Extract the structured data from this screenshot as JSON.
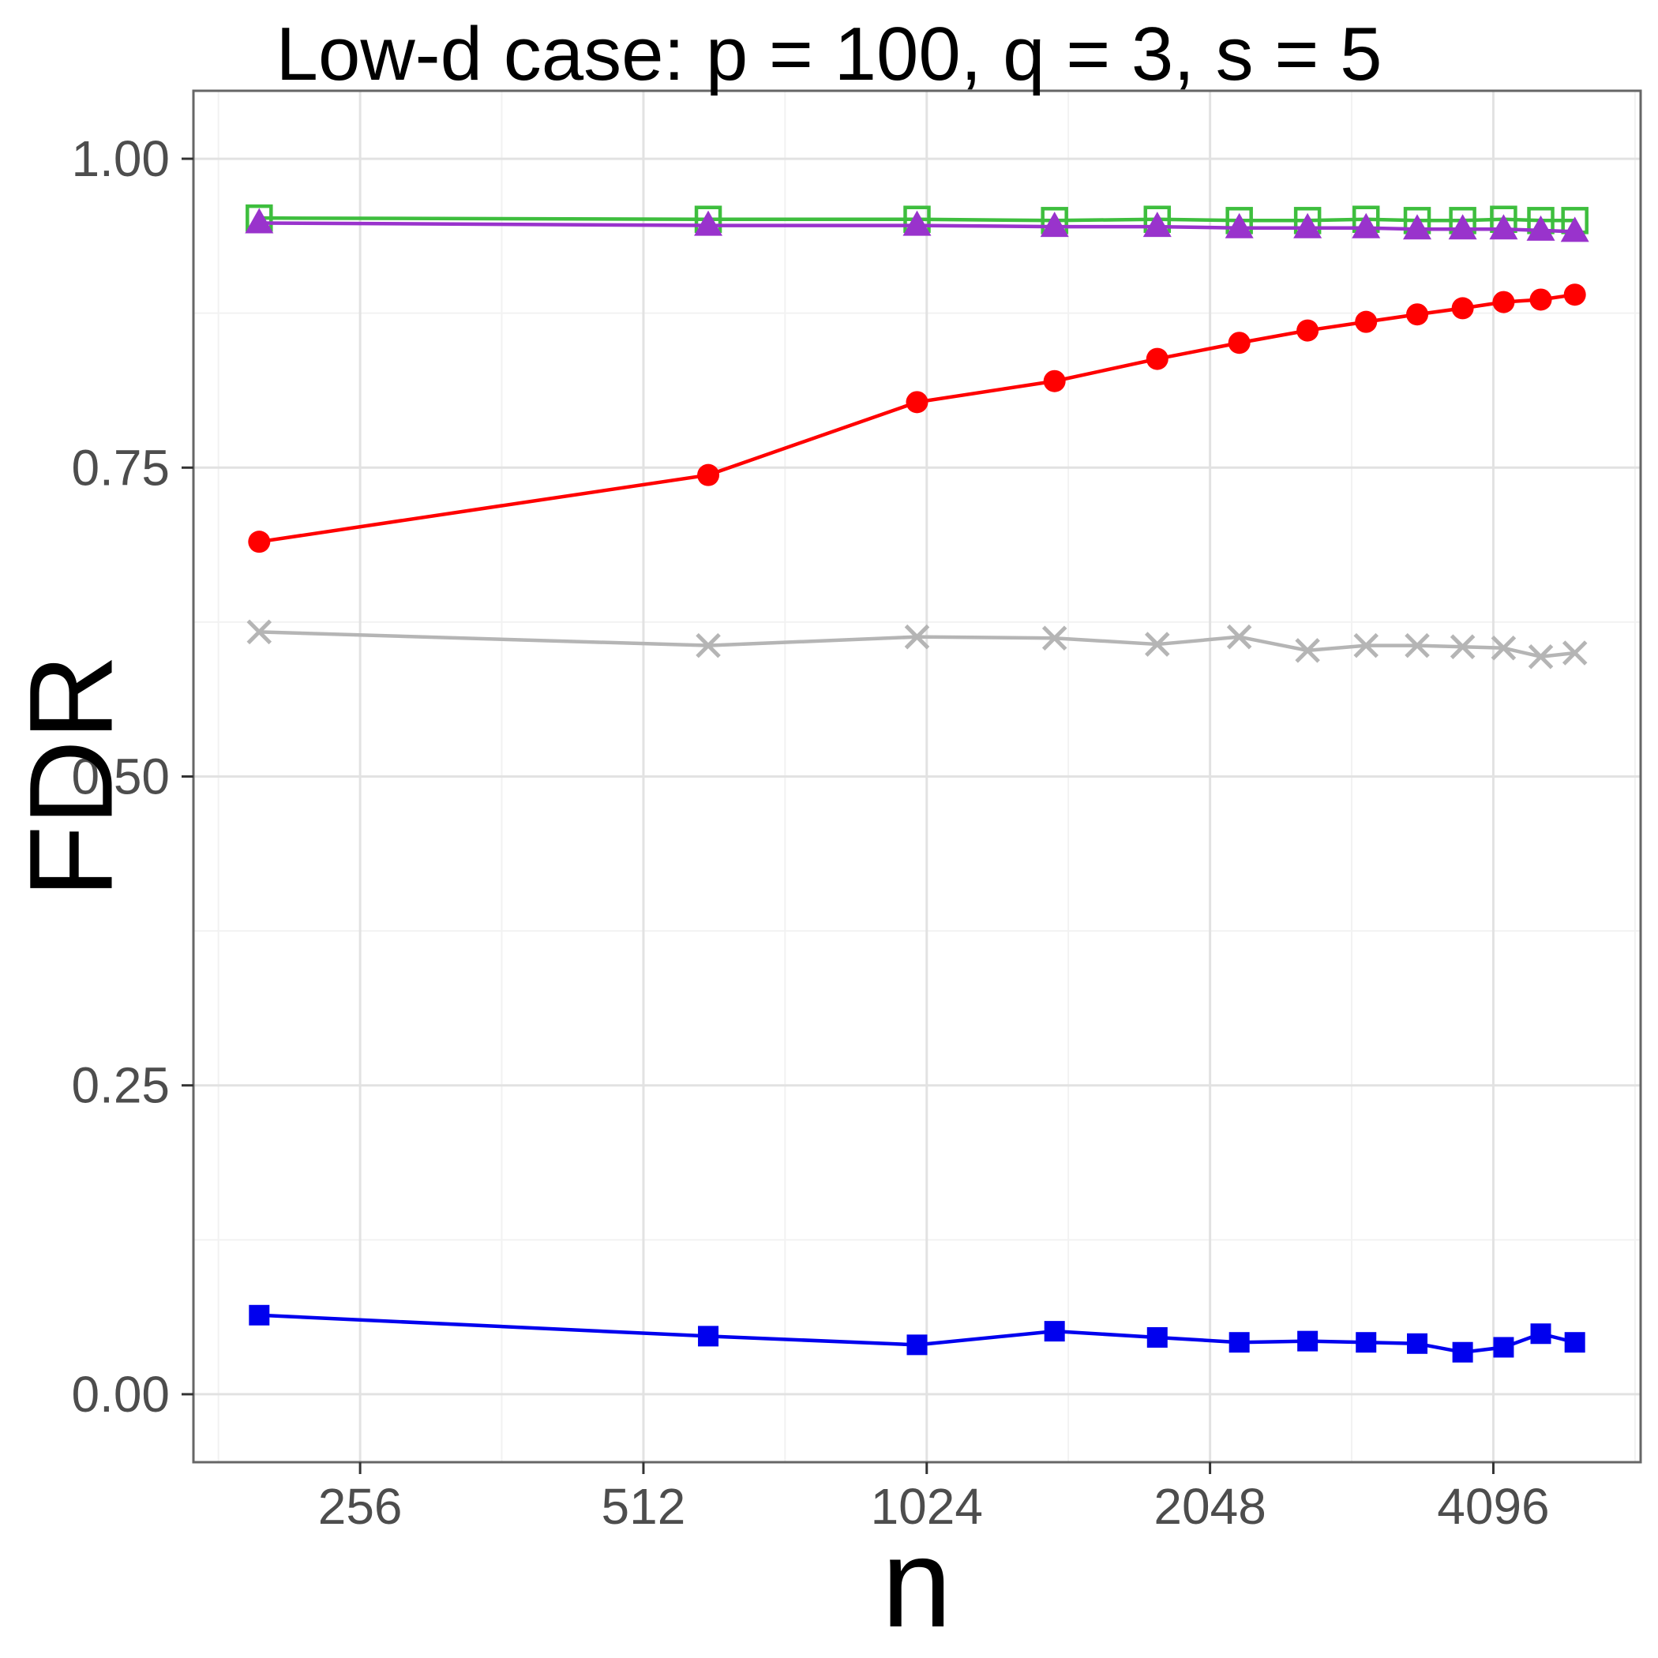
{
  "title": "Low-d case: p = 100, q = 3, s = 5",
  "axis": {
    "x_label": "n",
    "y_label": "FDR",
    "text_color": "#4D4D4D"
  },
  "panel": {
    "background": "#FFFFFF",
    "border_color": "#666666",
    "grid_major": "#E2E2E2",
    "grid_minor": "#F2F2F2",
    "tick_color": "#333333"
  },
  "chart_data": {
    "type": "line",
    "title": "Low-d case: p = 100, q = 3, s = 5",
    "xlabel": "n",
    "ylabel": "FDR",
    "x_scale": "log2",
    "grid": true,
    "legend": "none",
    "x": [
      200,
      600,
      1000,
      1400,
      1800,
      2200,
      2600,
      3000,
      3400,
      3800,
      4200,
      4600,
      5000
    ],
    "x_ticks": [
      256,
      512,
      1024,
      2048,
      4096
    ],
    "x_tick_labels": [
      "256",
      "512",
      "1024",
      "2048",
      "4096"
    ],
    "x_minor": [
      181,
      362,
      724,
      1448,
      2896,
      5793
    ],
    "y_ticks": [
      0.0,
      0.25,
      0.5,
      0.75,
      1.0
    ],
    "y_tick_labels": [
      "0.00",
      "0.25",
      "0.50",
      "0.75",
      "1.00"
    ],
    "y_minor": [
      0.125,
      0.375,
      0.625,
      0.875
    ],
    "ylim": [
      -0.055,
      1.055
    ],
    "series": [
      {
        "name": "green-open-square",
        "marker": "open-square",
        "color": "#3EBE3E",
        "values": [
          0.952,
          0.951,
          0.951,
          0.95,
          0.951,
          0.95,
          0.95,
          0.951,
          0.95,
          0.95,
          0.951,
          0.95,
          0.95
        ]
      },
      {
        "name": "purple-triangle",
        "marker": "triangle",
        "color": "#9933CC",
        "values": [
          0.948,
          0.946,
          0.946,
          0.945,
          0.945,
          0.944,
          0.944,
          0.944,
          0.943,
          0.943,
          0.943,
          0.942,
          0.941
        ]
      },
      {
        "name": "red-circle",
        "marker": "circle",
        "color": "#FF0000",
        "values": [
          0.69,
          0.744,
          0.803,
          0.82,
          0.838,
          0.851,
          0.861,
          0.868,
          0.874,
          0.879,
          0.884,
          0.886,
          0.89
        ]
      },
      {
        "name": "gray-x",
        "marker": "x",
        "color": "#B5B5B5",
        "values": [
          0.617,
          0.606,
          0.613,
          0.612,
          0.607,
          0.613,
          0.602,
          0.606,
          0.606,
          0.605,
          0.604,
          0.597,
          0.6
        ]
      },
      {
        "name": "blue-square",
        "marker": "square",
        "color": "#0000EE",
        "values": [
          0.064,
          0.047,
          0.04,
          0.051,
          0.046,
          0.042,
          0.043,
          0.042,
          0.041,
          0.034,
          0.038,
          0.049,
          0.042
        ]
      }
    ]
  }
}
